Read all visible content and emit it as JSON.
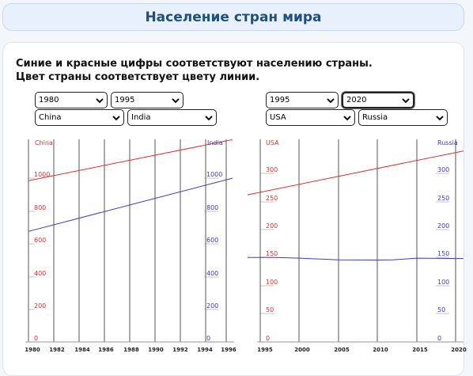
{
  "header": {
    "title": "Население стран мира"
  },
  "description": {
    "line1": "Синие и красные цифры соответствуют населению страны.",
    "line2": "Цвет страны соответствует цвету линии."
  },
  "colors": {
    "red": "#e03030",
    "blue": "#3a3ad0",
    "grid": "#555555"
  },
  "left_controls": {
    "from_year": "1980",
    "to_year": "1995",
    "country_red": "China",
    "country_blue": "India"
  },
  "right_controls": {
    "from_year": "1995",
    "to_year": "2020",
    "country_red": "USA",
    "country_blue": "Russia"
  },
  "chart_data": [
    {
      "type": "line",
      "title": "",
      "x": [
        1980,
        1996
      ],
      "xticks": [
        "1980",
        "1982",
        "1984",
        "1986",
        "1988",
        "1990",
        "1992",
        "1994",
        "1996"
      ],
      "xlim": [
        1980,
        1996
      ],
      "series": [
        {
          "name": "China",
          "color": "#e03030",
          "axis": "left",
          "x": [
            1978.5,
            1996.5
          ],
          "values": [
            975,
            1225
          ]
        },
        {
          "name": "India",
          "color": "#3a3ad0",
          "axis": "right",
          "x": [
            1978.5,
            1996.5
          ],
          "values": [
            665,
            990
          ]
        }
      ],
      "left_axis": {
        "label": "China",
        "ticks": [
          "0",
          "200",
          "400",
          "600",
          "800",
          "1000"
        ],
        "ylim": [
          0,
          1200
        ]
      },
      "right_axis": {
        "label": "India",
        "ticks": [
          "0",
          "200",
          "400",
          "600",
          "800",
          "1000"
        ],
        "ylim": [
          0,
          1200
        ]
      }
    },
    {
      "type": "line",
      "title": "",
      "x": [
        1995,
        2020
      ],
      "xticks": [
        "1995",
        "2000",
        "2005",
        "2010",
        "2015",
        "2020"
      ],
      "xlim": [
        1995,
        2020
      ],
      "series": [
        {
          "name": "USA",
          "color": "#e03030",
          "axis": "left",
          "x": [
            1992.5,
            2021
          ],
          "values": [
            259,
            337
          ]
        },
        {
          "name": "Russia",
          "color": "#3a3ad0",
          "axis": "right",
          "x": [
            1992.5,
            1997,
            2000,
            2005,
            2010,
            2012,
            2015,
            2021
          ],
          "values": [
            147.5,
            147.5,
            146.3,
            143.3,
            143.0,
            143.2,
            146.3,
            145.6
          ]
        }
      ],
      "left_axis": {
        "label": "USA",
        "ticks": [
          "0",
          "50",
          "100",
          "150",
          "200",
          "250",
          "300"
        ],
        "ylim": [
          0,
          350
        ]
      },
      "right_axis": {
        "label": "Russia",
        "ticks": [
          "0",
          "50",
          "100",
          "150",
          "200",
          "250",
          "300"
        ],
        "ylim": [
          0,
          350
        ]
      }
    }
  ]
}
